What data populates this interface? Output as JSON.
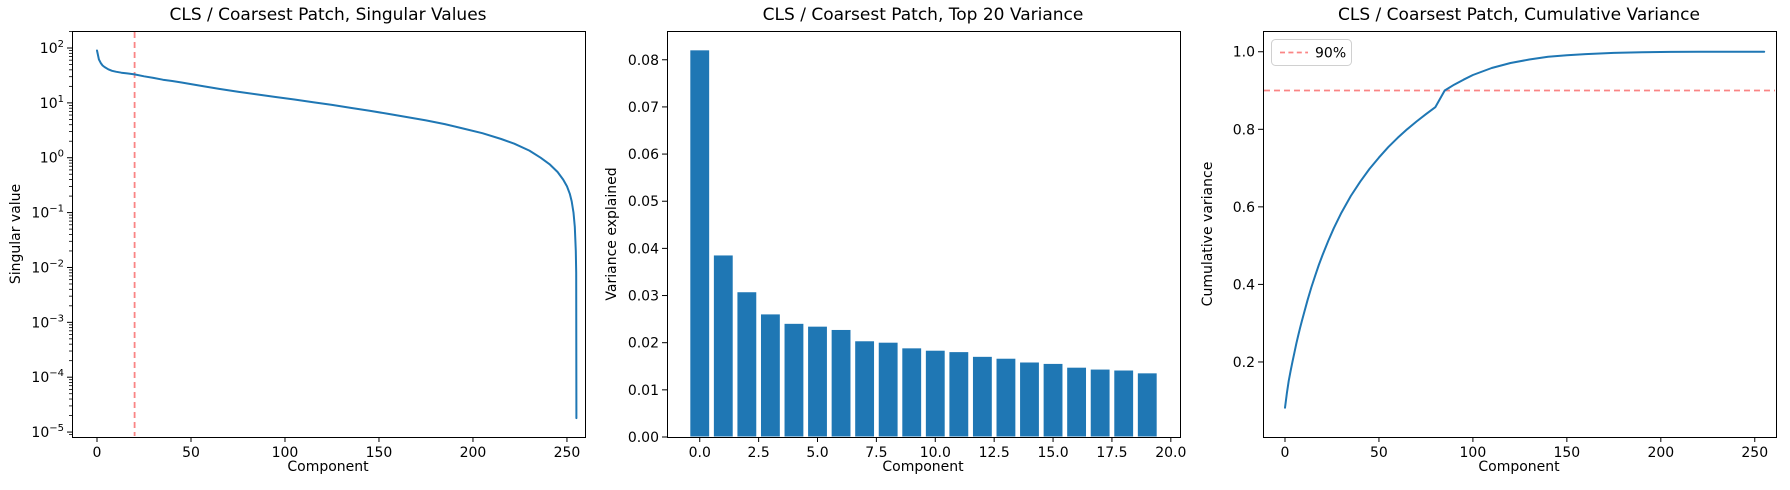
{
  "figure": {
    "background": "#ffffff",
    "line_blue": "#1f77b4",
    "dashed_red": "#fa8585",
    "text_color": "#000000",
    "legend_border": "#d0d0d0"
  },
  "chart_data": [
    {
      "type": "line",
      "title": "CLS / Coarsest Patch, Singular Values",
      "xlabel": "Component",
      "ylabel": "Singular value",
      "yscale": "log",
      "grid": false,
      "xlim": [
        -13.3,
        259.6
      ],
      "ylim_log_exponents": [
        2.31,
        -5.09
      ],
      "x_ticks": [
        0,
        50,
        100,
        150,
        200,
        250
      ],
      "x_tick_labels": [
        "0",
        "50",
        "100",
        "150",
        "200",
        "250"
      ],
      "y_tick_exponents": [
        2,
        1,
        0,
        -1,
        -2,
        -3,
        -4,
        -5
      ],
      "vline": {
        "x": 20,
        "style": "dashed",
        "color_key": "dashed_red"
      },
      "points": [
        [
          0,
          90
        ],
        [
          1,
          62
        ],
        [
          2,
          53
        ],
        [
          3,
          48
        ],
        [
          4,
          45
        ],
        [
          6,
          41
        ],
        [
          8,
          38.5
        ],
        [
          10,
          37
        ],
        [
          13,
          35.5
        ],
        [
          16,
          34.5
        ],
        [
          20,
          33
        ],
        [
          25,
          30.5
        ],
        [
          30,
          28.5
        ],
        [
          35,
          26.5
        ],
        [
          40,
          25
        ],
        [
          45,
          23.5
        ],
        [
          50,
          22
        ],
        [
          57,
          20
        ],
        [
          65,
          18
        ],
        [
          75,
          16
        ],
        [
          85,
          14.3
        ],
        [
          95,
          12.8
        ],
        [
          105,
          11.5
        ],
        [
          115,
          10.3
        ],
        [
          125,
          9.2
        ],
        [
          135,
          8.1
        ],
        [
          145,
          7.2
        ],
        [
          155,
          6.3
        ],
        [
          165,
          5.5
        ],
        [
          175,
          4.8
        ],
        [
          185,
          4.1
        ],
        [
          195,
          3.4
        ],
        [
          205,
          2.8
        ],
        [
          215,
          2.2
        ],
        [
          222,
          1.8
        ],
        [
          230,
          1.35
        ],
        [
          236,
          1.0
        ],
        [
          241,
          0.75
        ],
        [
          245,
          0.55
        ],
        [
          248,
          0.4
        ],
        [
          250,
          0.3
        ],
        [
          251.5,
          0.22
        ],
        [
          252.5,
          0.16
        ],
        [
          253.5,
          0.1
        ],
        [
          254.2,
          0.055
        ],
        [
          254.7,
          0.02
        ],
        [
          254.9,
          0.008
        ],
        [
          255,
          1.8e-05
        ]
      ]
    },
    {
      "type": "bar",
      "title": "CLS / Coarsest Patch, Top 20 Variance",
      "xlabel": "Component",
      "ylabel": "Variance explained",
      "grid": false,
      "xlim": [
        -1.39,
        20.39
      ],
      "ylim": [
        0,
        0.0861
      ],
      "bar_width": 0.8,
      "categories": [
        0,
        1,
        2,
        3,
        4,
        5,
        6,
        7,
        8,
        9,
        10,
        11,
        12,
        13,
        14,
        15,
        16,
        17,
        18,
        19
      ],
      "values": [
        0.082,
        0.0385,
        0.0307,
        0.026,
        0.024,
        0.0234,
        0.0227,
        0.0203,
        0.02,
        0.0188,
        0.0183,
        0.018,
        0.017,
        0.0166,
        0.0158,
        0.0155,
        0.0147,
        0.0143,
        0.0141,
        0.0135
      ],
      "x_ticks": [
        0,
        2.5,
        5,
        7.5,
        10,
        12.5,
        15,
        17.5,
        20
      ],
      "x_tick_labels": [
        "0.0",
        "2.5",
        "5.0",
        "7.5",
        "10.0",
        "12.5",
        "15.0",
        "17.5",
        "20.0"
      ],
      "y_ticks": [
        0,
        0.01,
        0.02,
        0.03,
        0.04,
        0.05,
        0.06,
        0.07,
        0.08
      ],
      "y_tick_labels": [
        "0.00",
        "0.01",
        "0.02",
        "0.03",
        "0.04",
        "0.05",
        "0.06",
        "0.07",
        "0.08"
      ]
    },
    {
      "type": "line",
      "title": "CLS / Coarsest Patch, Cumulative Variance",
      "xlabel": "Component",
      "ylabel": "Cumulative variance",
      "grid": false,
      "xlim": [
        -11.7,
        261.3
      ],
      "ylim": [
        0.0065,
        1.0535
      ],
      "x_ticks": [
        0,
        50,
        100,
        150,
        200,
        250
      ],
      "x_tick_labels": [
        "0",
        "50",
        "100",
        "150",
        "200",
        "250"
      ],
      "y_ticks": [
        0.2,
        0.4,
        0.6,
        0.8,
        1.0
      ],
      "y_tick_labels": [
        "0.2",
        "0.4",
        "0.6",
        "0.8",
        "1.0"
      ],
      "hline": {
        "y": 0.9,
        "style": "dashed",
        "color_key": "dashed_red"
      },
      "legend": {
        "label": "90%",
        "position": "upper left"
      },
      "points": [
        [
          0,
          0.082
        ],
        [
          1,
          0.12
        ],
        [
          2,
          0.151
        ],
        [
          3,
          0.177
        ],
        [
          4,
          0.201
        ],
        [
          5,
          0.224
        ],
        [
          6,
          0.247
        ],
        [
          7,
          0.267
        ],
        [
          8,
          0.287
        ],
        [
          9,
          0.306
        ],
        [
          10,
          0.324
        ],
        [
          12,
          0.359
        ],
        [
          14,
          0.392
        ],
        [
          16,
          0.422
        ],
        [
          18,
          0.45
        ],
        [
          20,
          0.476
        ],
        [
          23,
          0.512
        ],
        [
          26,
          0.545
        ],
        [
          30,
          0.585
        ],
        [
          35,
          0.628
        ],
        [
          40,
          0.665
        ],
        [
          45,
          0.698
        ],
        [
          50,
          0.727
        ],
        [
          55,
          0.754
        ],
        [
          60,
          0.778
        ],
        [
          65,
          0.8
        ],
        [
          70,
          0.82
        ],
        [
          75,
          0.839
        ],
        [
          80,
          0.857
        ],
        [
          85,
          0.9
        ],
        [
          90,
          0.915
        ],
        [
          95,
          0.928
        ],
        [
          100,
          0.94
        ],
        [
          110,
          0.958
        ],
        [
          120,
          0.971
        ],
        [
          130,
          0.98
        ],
        [
          140,
          0.987
        ],
        [
          150,
          0.991
        ],
        [
          160,
          0.994
        ],
        [
          175,
          0.997
        ],
        [
          190,
          0.9985
        ],
        [
          205,
          0.9995
        ],
        [
          220,
          1.0
        ],
        [
          255,
          1.0
        ]
      ]
    }
  ]
}
